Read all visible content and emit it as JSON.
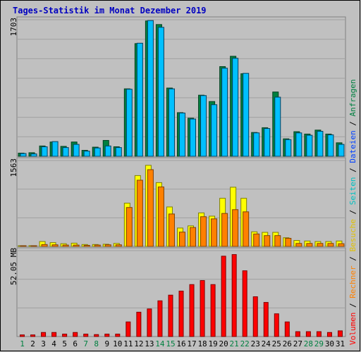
{
  "title": "Tages-Statistik im Monat Dezember 2019",
  "colors": {
    "background": "#c0c0c0",
    "border": "#808080",
    "gridline": "#a0a0a0",
    "title": "#0000c0",
    "weekday_label": "#000000",
    "weekend_label": "#008040",
    "anfragen": "#008040",
    "dateien": "#00c0ff",
    "seiten": "#00c0c0",
    "besuche": "#ffff00",
    "rechner": "#ff8000",
    "volumen": "#ff0000"
  },
  "chart_data": [
    {
      "type": "bar",
      "panel": "top",
      "max_label": "1703",
      "ymax": 1703,
      "categories": [
        "1",
        "2",
        "3",
        "4",
        "5",
        "6",
        "7",
        "8",
        "9",
        "10",
        "11",
        "12",
        "13",
        "14",
        "15",
        "16",
        "17",
        "18",
        "19",
        "20",
        "21",
        "22",
        "23",
        "24",
        "25",
        "26",
        "27",
        "28",
        "29",
        "30",
        "31"
      ],
      "weekend_days": [
        1,
        7,
        8,
        14,
        15,
        21,
        22,
        28,
        29
      ],
      "series": [
        {
          "name": "Anfragen",
          "values": [
            40,
            45,
            130,
            180,
            125,
            180,
            75,
            115,
            200,
            120,
            850,
            1420,
            1705,
            1660,
            860,
            550,
            480,
            770,
            690,
            1130,
            1260,
            1040,
            300,
            360,
            810,
            220,
            310,
            280,
            330,
            280,
            170
          ]
        },
        {
          "name": "Dateien",
          "values": [
            35,
            30,
            120,
            185,
            110,
            150,
            65,
            105,
            130,
            110,
            845,
            1425,
            1710,
            1625,
            850,
            545,
            470,
            765,
            650,
            1110,
            1235,
            1045,
            295,
            350,
            745,
            210,
            295,
            265,
            315,
            270,
            150
          ]
        }
      ]
    },
    {
      "type": "bar",
      "panel": "middle",
      "max_label": "1563",
      "ymax": 1563,
      "series": [
        {
          "name": "Besuche",
          "values": [
            10,
            10,
            90,
            70,
            50,
            60,
            35,
            35,
            40,
            55,
            800,
            1310,
            1500,
            1180,
            730,
            340,
            380,
            620,
            560,
            890,
            1095,
            890,
            270,
            260,
            260,
            160,
            110,
            100,
            90,
            90,
            100
          ]
        },
        {
          "name": "Rechner",
          "values": [
            5,
            5,
            35,
            30,
            25,
            25,
            20,
            25,
            30,
            30,
            720,
            1225,
            1420,
            1100,
            600,
            265,
            350,
            550,
            510,
            610,
            680,
            640,
            230,
            200,
            200,
            150,
            55,
            55,
            55,
            55,
            50
          ]
        }
      ]
    },
    {
      "type": "bar",
      "panel": "bottom",
      "max_label": "52.05 MB",
      "ymax": 52.05,
      "series": [
        {
          "name": "Volumen",
          "values": [
            1,
            1,
            2.5,
            2.5,
            1.5,
            2.5,
            1.5,
            1.2,
            1.5,
            1.5,
            9,
            15,
            17,
            22,
            25.5,
            28,
            32,
            34.5,
            32,
            49.5,
            50.5,
            40.5,
            24.5,
            21,
            14,
            9,
            3,
            3,
            3,
            2.5,
            3.5
          ]
        }
      ]
    }
  ],
  "legend": {
    "anfragen": "Anfragen",
    "dateien": "Dateien",
    "seiten": "Seiten",
    "besuche": "Besuche",
    "rechner": "Rechner",
    "volumen": "Volumen",
    "separator": " / "
  }
}
